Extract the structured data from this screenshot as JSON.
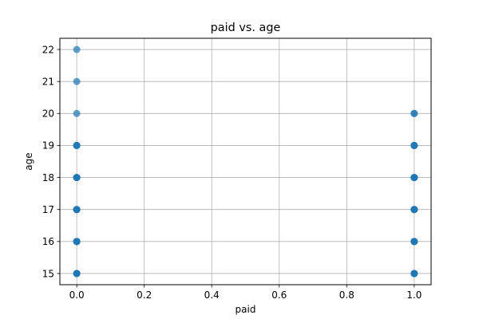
{
  "chart_data": {
    "type": "scatter",
    "title": "paid vs. age",
    "xlabel": "paid",
    "ylabel": "age",
    "xlim": [
      -0.05,
      1.05
    ],
    "ylim": [
      14.65,
      22.35
    ],
    "xticks": [
      0.0,
      0.2,
      0.4,
      0.6,
      0.8,
      1.0
    ],
    "xtick_labels": [
      "0.0",
      "0.2",
      "0.4",
      "0.6",
      "0.8",
      "1.0"
    ],
    "yticks": [
      15,
      16,
      17,
      18,
      19,
      20,
      21,
      22
    ],
    "ytick_labels": [
      "15",
      "16",
      "17",
      "18",
      "19",
      "20",
      "21",
      "22"
    ],
    "grid": true,
    "marker_color": "#1f77b4",
    "points": [
      {
        "x": 0,
        "y": 15,
        "n": 5
      },
      {
        "x": 0,
        "y": 16,
        "n": 5
      },
      {
        "x": 0,
        "y": 17,
        "n": 5
      },
      {
        "x": 0,
        "y": 18,
        "n": 5
      },
      {
        "x": 0,
        "y": 19,
        "n": 4
      },
      {
        "x": 0,
        "y": 20,
        "n": 1
      },
      {
        "x": 0,
        "y": 21,
        "n": 1
      },
      {
        "x": 0,
        "y": 22,
        "n": 1
      },
      {
        "x": 1,
        "y": 15,
        "n": 5
      },
      {
        "x": 1,
        "y": 16,
        "n": 5
      },
      {
        "x": 1,
        "y": 17,
        "n": 5
      },
      {
        "x": 1,
        "y": 18,
        "n": 5
      },
      {
        "x": 1,
        "y": 19,
        "n": 4
      },
      {
        "x": 1,
        "y": 20,
        "n": 2
      }
    ]
  }
}
